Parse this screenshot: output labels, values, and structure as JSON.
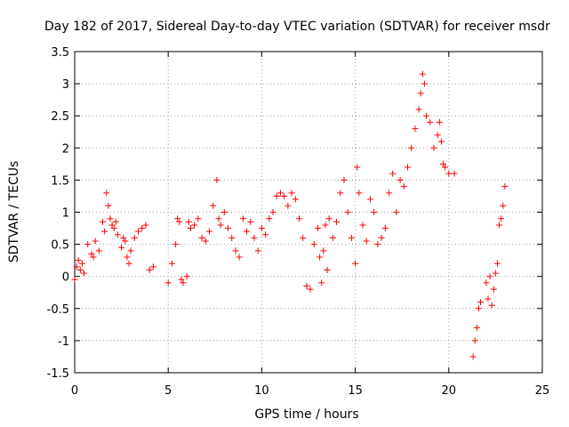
{
  "chart_data": {
    "type": "scatter",
    "title": "Day 182 of 2017, Sidereal Day-to-day VTEC variation (SDTVAR) for receiver msdr",
    "xlabel": "GPS time / hours",
    "ylabel": "SDTVAR / TECUs",
    "xlim": [
      0,
      25
    ],
    "ylim": [
      -1.5,
      3.5
    ],
    "xticks": [
      0,
      5,
      10,
      15,
      20,
      25
    ],
    "xtick_labels": [
      "0",
      "5",
      "10",
      "15",
      "20",
      "25"
    ],
    "yticks": [
      -1.5,
      -1,
      -0.5,
      0,
      0.5,
      1,
      1.5,
      2,
      2.5,
      3,
      3.5
    ],
    "ytick_labels": [
      "-1.5",
      "-1",
      "-0.5",
      "0",
      "0.5",
      "1",
      "1.5",
      "2",
      "2.5",
      "3",
      "3.5"
    ],
    "grid": true,
    "marker": "+",
    "color": "#ff0000",
    "series": [
      {
        "name": "SDTVAR",
        "x": [
          0.0,
          0.1,
          0.2,
          0.3,
          0.4,
          0.5,
          0.7,
          0.9,
          1.0,
          1.1,
          1.3,
          1.5,
          1.6,
          1.7,
          1.8,
          1.9,
          2.0,
          2.1,
          2.2,
          2.3,
          2.5,
          2.6,
          2.7,
          2.8,
          2.9,
          3.0,
          3.2,
          3.4,
          3.6,
          3.8,
          4.0,
          4.2,
          5.0,
          5.2,
          5.4,
          5.5,
          5.6,
          5.7,
          5.8,
          6.0,
          6.1,
          6.2,
          6.4,
          6.6,
          6.8,
          7.0,
          7.2,
          7.4,
          7.6,
          7.7,
          7.8,
          8.0,
          8.2,
          8.4,
          8.6,
          8.8,
          9.0,
          9.2,
          9.4,
          9.6,
          9.8,
          10.0,
          10.2,
          10.4,
          10.6,
          10.8,
          11.0,
          11.2,
          11.4,
          11.6,
          11.8,
          12.0,
          12.2,
          12.4,
          12.6,
          12.8,
          13.0,
          13.1,
          13.2,
          13.3,
          13.4,
          13.5,
          13.6,
          13.8,
          14.0,
          14.2,
          14.4,
          14.6,
          14.8,
          15.0,
          15.1,
          15.2,
          15.4,
          15.6,
          15.8,
          16.0,
          16.2,
          16.4,
          16.6,
          16.8,
          17.0,
          17.2,
          17.4,
          17.6,
          17.8,
          18.0,
          18.2,
          18.4,
          18.5,
          18.6,
          18.7,
          18.8,
          19.0,
          19.2,
          19.4,
          19.5,
          19.6,
          19.7,
          19.8,
          20.0,
          20.3,
          21.3,
          21.4,
          21.5,
          21.6,
          21.7,
          22.0,
          22.1,
          22.2,
          22.3,
          22.4,
          22.5,
          22.6,
          22.7,
          22.8,
          22.9,
          23.0
        ],
        "y": [
          -0.05,
          0.15,
          0.25,
          0.1,
          0.2,
          0.05,
          0.5,
          0.35,
          0.3,
          0.55,
          0.4,
          0.85,
          0.7,
          1.3,
          1.1,
          0.9,
          0.8,
          0.75,
          0.85,
          0.65,
          0.45,
          0.6,
          0.55,
          0.3,
          0.2,
          0.4,
          0.6,
          0.7,
          0.75,
          0.8,
          0.1,
          0.15,
          -0.1,
          0.2,
          0.5,
          0.9,
          0.85,
          -0.05,
          -0.1,
          0.0,
          0.85,
          0.75,
          0.8,
          0.9,
          0.6,
          0.55,
          0.7,
          1.1,
          1.5,
          0.9,
          0.8,
          1.0,
          0.75,
          0.6,
          0.4,
          0.3,
          0.9,
          0.7,
          0.85,
          0.6,
          0.4,
          0.75,
          0.65,
          0.9,
          1.0,
          1.25,
          1.3,
          1.25,
          1.1,
          1.3,
          1.2,
          0.9,
          0.6,
          -0.15,
          -0.2,
          0.5,
          0.75,
          0.3,
          -0.1,
          0.4,
          0.8,
          0.1,
          0.9,
          0.6,
          0.85,
          1.3,
          1.5,
          1.0,
          0.6,
          0.2,
          1.7,
          1.3,
          0.8,
          0.55,
          1.2,
          1.0,
          0.5,
          0.6,
          0.75,
          1.3,
          1.6,
          1.0,
          1.5,
          1.4,
          1.7,
          2.0,
          2.3,
          2.6,
          2.85,
          3.15,
          3.0,
          2.5,
          2.4,
          2.0,
          2.2,
          2.4,
          2.1,
          1.75,
          1.7,
          1.6,
          1.6,
          -1.25,
          -1.0,
          -0.8,
          -0.5,
          -0.4,
          -0.1,
          -0.35,
          0.0,
          -0.45,
          -0.2,
          0.05,
          0.2,
          0.8,
          0.9,
          1.1,
          1.4
        ]
      }
    ]
  }
}
